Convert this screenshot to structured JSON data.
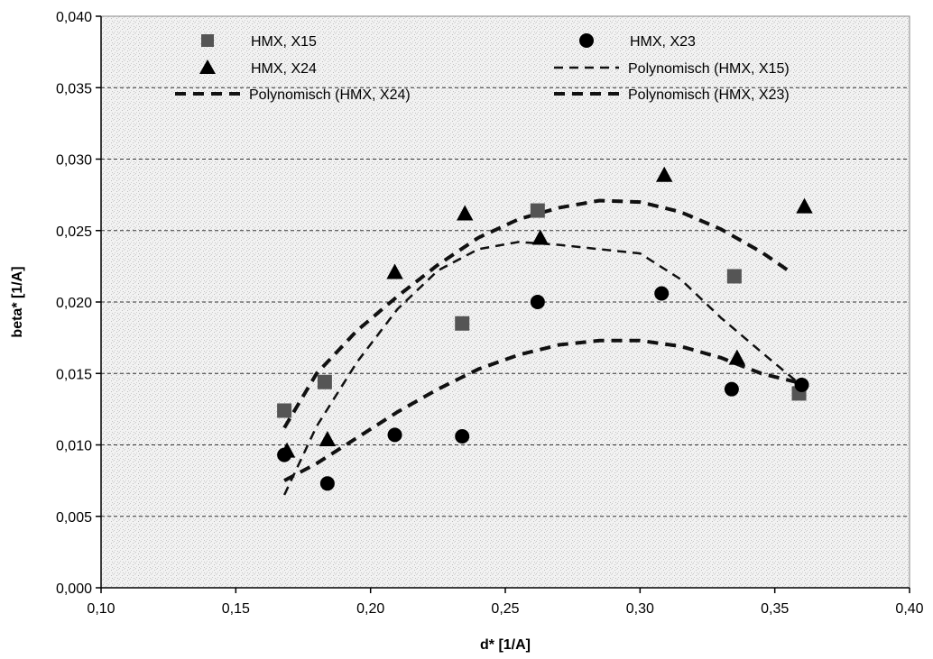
{
  "chart_data": {
    "type": "scatter",
    "xlabel": "d* [1/A]",
    "ylabel": "beta* [1/A]",
    "xlim": [
      0.1,
      0.4
    ],
    "ylim": [
      0.0,
      0.04
    ],
    "x_ticks": [
      "0,10",
      "0,15",
      "0,20",
      "0,25",
      "0,30",
      "0,35",
      "0,40"
    ],
    "y_ticks": [
      "0,000",
      "0,005",
      "0,010",
      "0,015",
      "0,020",
      "0,025",
      "0,030",
      "0,035",
      "0,040"
    ],
    "grid": "horizontal dashed",
    "series": [
      {
        "name": "HMX, X15",
        "marker": "square",
        "color": "#555555",
        "x": [
          0.168,
          0.183,
          0.234,
          0.262,
          0.335,
          0.359
        ],
        "y": [
          0.0124,
          0.0144,
          0.0185,
          0.0264,
          0.0218,
          0.0136
        ]
      },
      {
        "name": "HMX, X24",
        "marker": "triangle",
        "color": "#000000",
        "x": [
          0.169,
          0.184,
          0.209,
          0.235,
          0.263,
          0.309,
          0.336,
          0.361
        ],
        "y": [
          0.0096,
          0.0104,
          0.0221,
          0.0262,
          0.0245,
          0.0289,
          0.0161,
          0.0267
        ]
      },
      {
        "name": "HMX, X23",
        "marker": "circle",
        "color": "#000000",
        "x": [
          0.168,
          0.184,
          0.209,
          0.234,
          0.262,
          0.308,
          0.334,
          0.36
        ],
        "y": [
          0.0093,
          0.0073,
          0.0107,
          0.0106,
          0.02,
          0.0206,
          0.0139,
          0.0142
        ]
      }
    ],
    "trendlines": [
      {
        "name": "Polynomisch (HMX, X15)",
        "x": [
          0.168,
          0.18,
          0.195,
          0.21,
          0.225,
          0.24,
          0.255,
          0.27,
          0.285,
          0.3,
          0.315,
          0.33,
          0.345,
          0.359
        ],
        "y": [
          0.0065,
          0.0113,
          0.0158,
          0.0195,
          0.0222,
          0.0237,
          0.0242,
          0.024,
          0.0237,
          0.0234,
          0.0216,
          0.0189,
          0.0165,
          0.0143
        ]
      },
      {
        "name": "Polynomisch (HMX, X24)",
        "x": [
          0.168,
          0.18,
          0.195,
          0.21,
          0.225,
          0.24,
          0.255,
          0.27,
          0.285,
          0.3,
          0.315,
          0.33,
          0.345,
          0.355
        ],
        "y": [
          0.0112,
          0.015,
          0.018,
          0.0204,
          0.0226,
          0.0245,
          0.0258,
          0.0266,
          0.0271,
          0.027,
          0.0263,
          0.0251,
          0.0235,
          0.0222
        ]
      },
      {
        "name": "Polynomisch (HMX, X23)",
        "x": [
          0.168,
          0.18,
          0.195,
          0.21,
          0.225,
          0.24,
          0.255,
          0.27,
          0.285,
          0.3,
          0.315,
          0.33,
          0.345,
          0.36
        ],
        "y": [
          0.0075,
          0.0087,
          0.0105,
          0.0123,
          0.0139,
          0.0153,
          0.0163,
          0.017,
          0.0173,
          0.0173,
          0.0169,
          0.0161,
          0.015,
          0.0143
        ]
      }
    ],
    "legend": {
      "placement": "top",
      "entries": [
        {
          "label": "HMX, X15",
          "symbol": "square"
        },
        {
          "label": "HMX, X23",
          "symbol": "circle"
        },
        {
          "label": "HMX, X24",
          "symbol": "triangle"
        },
        {
          "label": "Polynomisch (HMX, X15)",
          "symbol": "thin-dash"
        },
        {
          "label": "Polynomisch (HMX, X24)",
          "symbol": "thick-dash"
        },
        {
          "label": "Polynomisch (HMX, X23)",
          "symbol": "thick-dash"
        }
      ]
    }
  }
}
